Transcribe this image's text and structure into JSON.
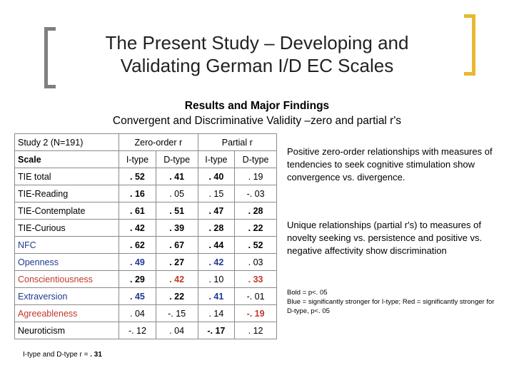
{
  "slide": {
    "title": "The Present Study – Developing and Validating German I/D EC Scales",
    "subtitle_line1": "Results and Major Findings",
    "subtitle_line2": "Convergent and Discriminative Validity –zero and partial r's"
  },
  "table": {
    "study": "Study 2 (N=191)",
    "group_zero": "Zero-order r",
    "group_partial": "Partial r",
    "scale_header": "Scale",
    "col_i": "I-type",
    "col_d": "D-type",
    "rows": [
      {
        "name": "TIE total",
        "name_color": "black",
        "values": [
          {
            "v": ". 52",
            "bold": true,
            "color": "black"
          },
          {
            "v": ". 41",
            "bold": true,
            "color": "black"
          },
          {
            "v": ". 40",
            "bold": true,
            "color": "black"
          },
          {
            "v": ". 19",
            "bold": false,
            "color": "black"
          }
        ]
      },
      {
        "name": "TIE-Reading",
        "name_color": "black",
        "values": [
          {
            "v": ". 16",
            "bold": true,
            "color": "black"
          },
          {
            "v": ". 05",
            "bold": false,
            "color": "black"
          },
          {
            "v": ". 15",
            "bold": false,
            "color": "black"
          },
          {
            "v": "-. 03",
            "bold": false,
            "color": "black"
          }
        ]
      },
      {
        "name": "TIE-Contemplate",
        "name_color": "black",
        "values": [
          {
            "v": ". 61",
            "bold": true,
            "color": "black"
          },
          {
            "v": ". 51",
            "bold": true,
            "color": "black"
          },
          {
            "v": ". 47",
            "bold": true,
            "color": "black"
          },
          {
            "v": ". 28",
            "bold": true,
            "color": "black"
          }
        ]
      },
      {
        "name": "TIE-Curious",
        "name_color": "black",
        "values": [
          {
            "v": ". 42",
            "bold": true,
            "color": "black"
          },
          {
            "v": ". 39",
            "bold": true,
            "color": "black"
          },
          {
            "v": ". 28",
            "bold": true,
            "color": "black"
          },
          {
            "v": ". 22",
            "bold": true,
            "color": "black"
          }
        ]
      },
      {
        "name": "NFC",
        "name_color": "blue",
        "values": [
          {
            "v": ". 62",
            "bold": true,
            "color": "black"
          },
          {
            "v": ". 67",
            "bold": true,
            "color": "black"
          },
          {
            "v": ". 44",
            "bold": true,
            "color": "black"
          },
          {
            "v": ". 52",
            "bold": true,
            "color": "black"
          }
        ]
      },
      {
        "name": "Openness",
        "name_color": "blue",
        "values": [
          {
            "v": ". 49",
            "bold": true,
            "color": "blue"
          },
          {
            "v": ". 27",
            "bold": true,
            "color": "black"
          },
          {
            "v": ". 42",
            "bold": true,
            "color": "blue"
          },
          {
            "v": ". 03",
            "bold": false,
            "color": "black"
          }
        ]
      },
      {
        "name": "Conscientiousness",
        "name_color": "red",
        "values": [
          {
            "v": ". 29",
            "bold": true,
            "color": "black"
          },
          {
            "v": ". 42",
            "bold": true,
            "color": "red"
          },
          {
            "v": ". 10",
            "bold": false,
            "color": "black"
          },
          {
            "v": ". 33",
            "bold": true,
            "color": "red"
          }
        ]
      },
      {
        "name": "Extraversion",
        "name_color": "blue",
        "values": [
          {
            "v": ". 45",
            "bold": true,
            "color": "blue"
          },
          {
            "v": ". 22",
            "bold": true,
            "color": "black"
          },
          {
            "v": ". 41",
            "bold": true,
            "color": "blue"
          },
          {
            "v": "-. 01",
            "bold": false,
            "color": "black"
          }
        ]
      },
      {
        "name": "Agreeableness",
        "name_color": "red",
        "values": [
          {
            "v": ". 04",
            "bold": false,
            "color": "black"
          },
          {
            "v": "-. 15",
            "bold": false,
            "color": "black"
          },
          {
            "v": ". 14",
            "bold": false,
            "color": "black"
          },
          {
            "v": "-. 19",
            "bold": true,
            "color": "red"
          }
        ]
      },
      {
        "name": "Neuroticism",
        "name_color": "black",
        "values": [
          {
            "v": "-. 12",
            "bold": false,
            "color": "black"
          },
          {
            "v": ". 04",
            "bold": false,
            "color": "black"
          },
          {
            "v": "-. 17",
            "bold": true,
            "color": "black"
          },
          {
            "v": ". 12",
            "bold": false,
            "color": "black"
          }
        ]
      }
    ],
    "footnote_prefix": "I-type and D-type r = ",
    "footnote_value": ". 31"
  },
  "findings": {
    "text1": "Positive zero-order relationships with measures of tendencies to seek cognitive stimulation show convergence vs. divergence.",
    "text2": "Unique relationships (partial r's) to measures of novelty seeking vs. persistence and positive vs. negative affectivity show discrimination",
    "legend_bold": "Bold = p<. 05",
    "legend_colors": "Blue = significantly stronger for I-type; Red = significantly stronger for D-type, p<. 05"
  },
  "colors": {
    "blue": "#1f3a93",
    "red": "#c0392b",
    "bracket_gray": "#7f7f7f",
    "bracket_gold": "#e8b830"
  }
}
